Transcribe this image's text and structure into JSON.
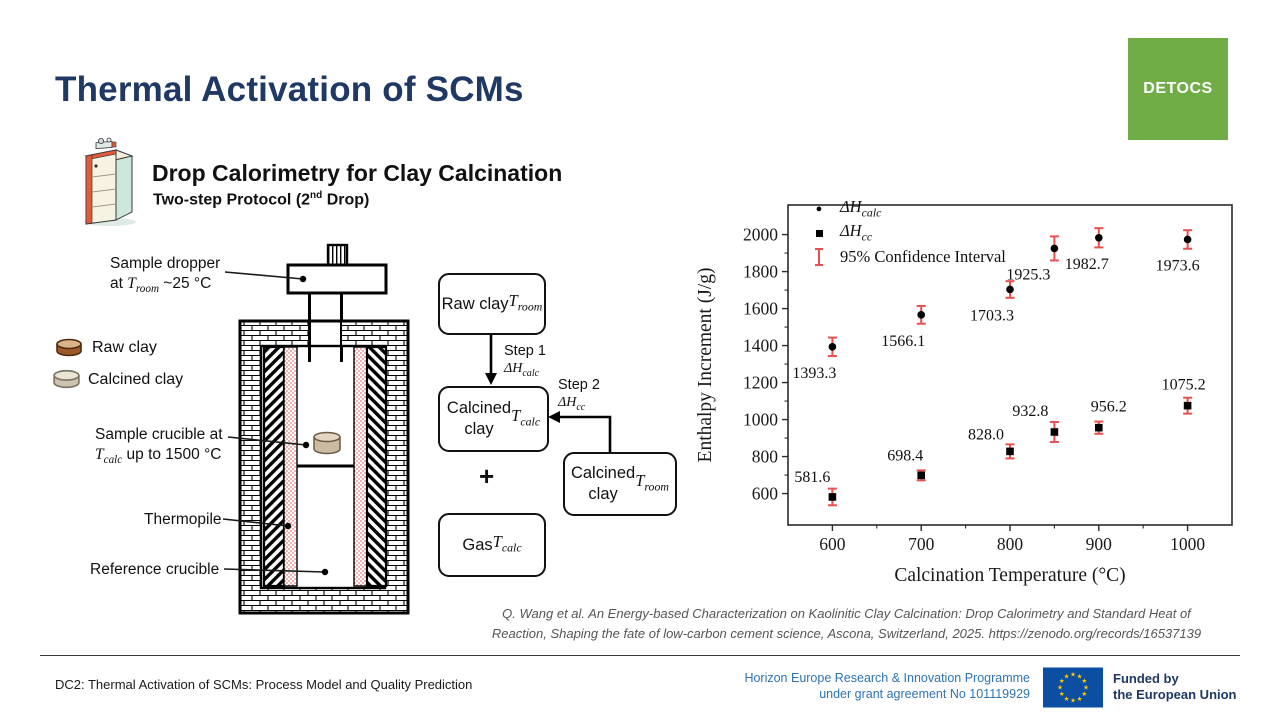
{
  "slide": {
    "title": "Thermal Activation of SCMs",
    "logo_text": "DETOCS",
    "logo_color": "#70AD47",
    "subtitle": "Drop Calorimetry for Clay Calcination",
    "subtitle2": "Two-step Protocol (2^{nd} Drop)"
  },
  "diagram": {
    "labels": {
      "sample_dropper": "Sample dropper\nat *T_{room}* ~25 °C",
      "raw_clay": "Raw clay",
      "calcined_clay": "Calcined clay",
      "sample_crucible": "Sample crucible at\n*T_{calc}* up to 1500 °C",
      "thermopile": "Thermopile",
      "reference_crucible": "Reference crucible"
    }
  },
  "flowchart": {
    "raw_clay_box": "Raw clay\n*T_{room}*",
    "calcined_calc_box": "Calcined\nclay *T_{calc}*",
    "calcined_room_box": "Calcined\nclay *T_{room}*",
    "gas_box": "Gas\n*T_{calc}*",
    "step1": "Step 1",
    "step1_dh": "*ΔH_{calc}*",
    "step2": "Step 2",
    "step2_dh": "*ΔH_{cc}*",
    "plus": "+"
  },
  "chart_data": {
    "type": "scatter",
    "title": "",
    "xlabel": "Calcination Temperature (°C)",
    "ylabel": "Enthalpy Increment (J/g)",
    "x": [
      600,
      700,
      800,
      850,
      900,
      1000
    ],
    "series": [
      {
        "name": "ΔH_calc",
        "marker": "circle",
        "values": [
          1393.3,
          1566.1,
          1703.3,
          1925.3,
          1982.7,
          1973.6
        ],
        "ci": [
          50,
          48,
          45,
          65,
          52,
          50
        ],
        "label_dx": [
          -18,
          -18,
          -18,
          -26,
          -12,
          -10
        ],
        "label_dy": [
          31,
          31,
          31,
          31,
          31,
          31
        ]
      },
      {
        "name": "ΔH_cc",
        "marker": "square",
        "values": [
          581.6,
          698.4,
          828.0,
          932.8,
          956.2,
          1075.2
        ],
        "ci": [
          45,
          27,
          38,
          54,
          33,
          43
        ],
        "label_dx": [
          -20,
          -16,
          -24,
          -24,
          10,
          -4
        ],
        "label_dy": [
          -15,
          -15,
          -12,
          -16,
          -16,
          -16
        ]
      }
    ],
    "legend": [
      {
        "marker": "circle",
        "label": "*ΔH_{calc}*"
      },
      {
        "marker": "square",
        "label": "*ΔH_{cc}*"
      },
      {
        "marker": "errorbar",
        "label": "95% Confidence Interval"
      }
    ],
    "legend_position": "upper left",
    "grid": false,
    "xlim": [
      550,
      1050
    ],
    "ylim": [
      430,
      2160
    ],
    "xticks": [
      600,
      700,
      800,
      900,
      1000
    ],
    "yticks": [
      600,
      800,
      1000,
      1200,
      1400,
      1600,
      1800,
      2000
    ],
    "ci_color": "#e8504e",
    "marker_color": "#000000"
  },
  "citation": {
    "line1": "Q. Wang et al. An Energy-based Characterization on Kaolinitic Clay Calcination: Drop Calorimetry and Standard Heat of",
    "line2": "Reaction, Shaping the fate of low-carbon cement science, Ascona, Switzerland, 2025. https://zenodo.org/records/16537139"
  },
  "footer": {
    "left": "DC2: Thermal Activation of SCMs: Process Model and Quality Prediction",
    "programme_line1": "Horizon Europe Research & Innovation Programme",
    "programme_line2": "under grant agreement No 101119929",
    "funded_line1": "Funded by",
    "funded_line2": "the European Union",
    "accent_blue": "#2E74B5",
    "navy": "#1F3864",
    "eu_flag_blue": "#0B4EA2",
    "eu_star_yellow": "#FFCC00"
  }
}
